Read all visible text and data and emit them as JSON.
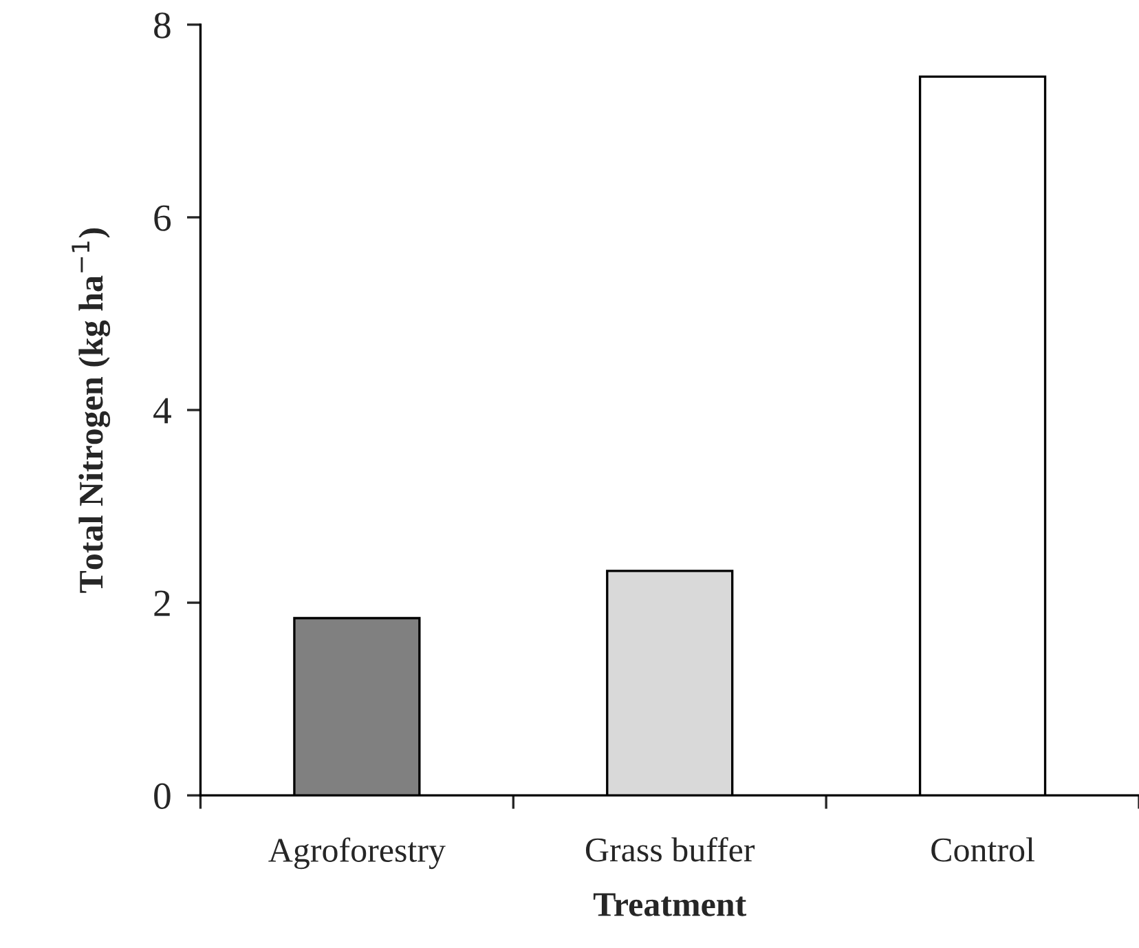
{
  "chart_data": {
    "type": "bar",
    "xlabel": "Treatment",
    "ylabel": "Total Nitrogen (kg ha$^{−1}$)",
    "categories": [
      "Agroforestry",
      "Grass buffer",
      "Control"
    ],
    "values": [
      1.84,
      2.33,
      7.46
    ],
    "colors": [
      "#808080",
      "#d9d9d9",
      "#ffffff"
    ],
    "ylim": [
      0,
      8
    ],
    "yticks": [
      0,
      2,
      4,
      6,
      8
    ],
    "grid": false,
    "legend": false
  }
}
